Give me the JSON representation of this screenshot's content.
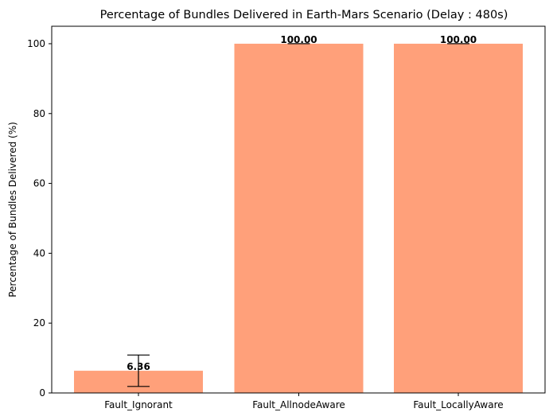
{
  "chart_data": {
    "type": "bar",
    "title": "Percentage of Bundles Delivered in Earth-Mars Scenario (Delay : 480s)",
    "xlabel": "",
    "ylabel": "Percentage of Bundles Delivered (%)",
    "categories": [
      "Fault_Ignorant",
      "Fault_AllnodeAware",
      "Fault_LocallyAware"
    ],
    "values": [
      6.36,
      100.0,
      100.0
    ],
    "value_labels": [
      "6.36",
      "100.00",
      "100.00"
    ],
    "error": [
      4.5,
      0.0,
      0.0
    ],
    "ylim": [
      0,
      105
    ],
    "yticks": [
      0,
      20,
      40,
      60,
      80,
      100
    ],
    "bar_color": "#ffa07a",
    "grid": false,
    "legend": "none"
  }
}
